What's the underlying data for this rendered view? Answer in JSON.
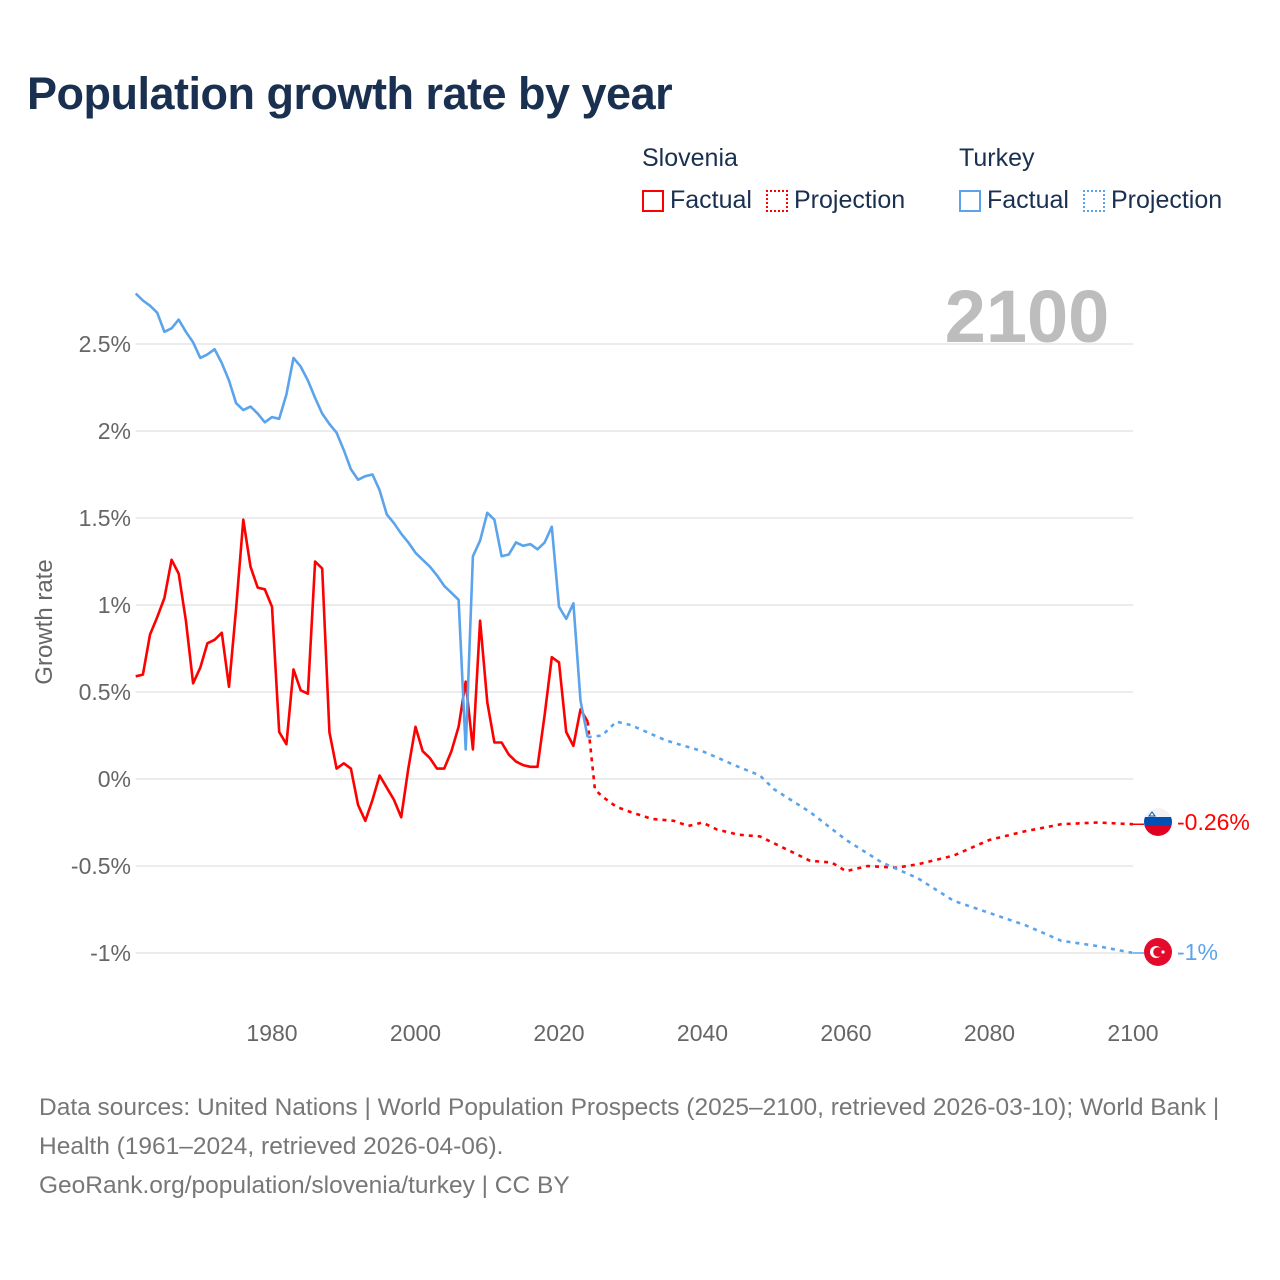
{
  "title": "Population growth rate by year",
  "legend": {
    "groups": [
      {
        "name": "Slovenia",
        "factual": "Factual",
        "projection": "Projection",
        "color": "#ff0000"
      },
      {
        "name": "Turkey",
        "factual": "Factual",
        "projection": "Projection",
        "color": "#5ba4ec"
      }
    ]
  },
  "year_label": "2100",
  "end_labels": {
    "slovenia": "-0.26%",
    "turkey": "-1%"
  },
  "footer": {
    "sources": "Data sources: United Nations | World Population Prospects (2025–2100, retrieved 2026-03-10); World Bank | Health (1961–2024, retrieved 2026-04-06).",
    "credit": "GeoRank.org/population/slovenia/turkey | CC BY"
  },
  "chart_data": {
    "type": "line",
    "title": "Population growth rate by year",
    "ylabel": "Growth rate",
    "xlabel": "",
    "xlim": [
      1961,
      2100
    ],
    "ylim": [
      -1.25,
      2.85
    ],
    "grid": true,
    "x_ticks": [
      "1980",
      "2000",
      "2020",
      "2040",
      "2060",
      "2080",
      "2100"
    ],
    "x_tick_values": [
      1980,
      2000,
      2020,
      2040,
      2060,
      2080,
      2100
    ],
    "y_ticks": [
      "-1%",
      "-0.5%",
      "0%",
      "0.5%",
      "1%",
      "1.5%",
      "2%",
      "2.5%"
    ],
    "y_tick_values": [
      -1,
      -0.5,
      0,
      0.5,
      1,
      1.5,
      2,
      2.5
    ],
    "legend_position": "top-right",
    "series": [
      {
        "name": "Slovenia",
        "kind": "Factual",
        "color": "#ff0000",
        "x": [
          1961,
          1962,
          1963,
          1964,
          1965,
          1966,
          1967,
          1968,
          1969,
          1970,
          1971,
          1972,
          1973,
          1974,
          1975,
          1976,
          1977,
          1978,
          1979,
          1980,
          1981,
          1982,
          1983,
          1984,
          1985,
          1986,
          1987,
          1988,
          1989,
          1990,
          1991,
          1992,
          1993,
          1994,
          1995,
          1996,
          1997,
          1998,
          1999,
          2000,
          2001,
          2002,
          2003,
          2004,
          2005,
          2006,
          2007,
          2008,
          2009,
          2010,
          2011,
          2012,
          2013,
          2014,
          2015,
          2016,
          2017,
          2018,
          2019,
          2020,
          2021,
          2022,
          2023,
          2024
        ],
        "y": [
          0.59,
          0.6,
          0.83,
          0.93,
          1.04,
          1.26,
          1.18,
          0.91,
          0.55,
          0.64,
          0.78,
          0.8,
          0.84,
          0.53,
          0.98,
          1.49,
          1.22,
          1.1,
          1.09,
          0.99,
          0.27,
          0.2,
          0.63,
          0.51,
          0.49,
          1.25,
          1.21,
          0.27,
          0.06,
          0.09,
          0.06,
          -0.15,
          -0.24,
          -0.12,
          0.02,
          -0.05,
          -0.12,
          -0.22,
          0.06,
          0.3,
          0.16,
          0.12,
          0.06,
          0.06,
          0.16,
          0.3,
          0.56,
          0.17,
          0.91,
          0.44,
          0.21,
          0.21,
          0.14,
          0.1,
          0.08,
          0.07,
          0.07,
          0.37,
          0.7,
          0.67,
          0.27,
          0.19,
          0.4,
          0.33
        ]
      },
      {
        "name": "Slovenia",
        "kind": "Projection",
        "color": "#ff0000",
        "x": [
          2024,
          2025,
          2026,
          2028,
          2030,
          2033,
          2036,
          2038,
          2040,
          2042,
          2045,
          2048,
          2050,
          2055,
          2058,
          2060,
          2063,
          2067,
          2070,
          2075,
          2080,
          2085,
          2090,
          2095,
          2100
        ],
        "y": [
          0.33,
          -0.06,
          -0.1,
          -0.16,
          -0.19,
          -0.23,
          -0.24,
          -0.27,
          -0.25,
          -0.29,
          -0.32,
          -0.33,
          -0.37,
          -0.47,
          -0.48,
          -0.53,
          -0.5,
          -0.51,
          -0.49,
          -0.44,
          -0.35,
          -0.3,
          -0.26,
          -0.25,
          -0.26
        ]
      },
      {
        "name": "Turkey",
        "kind": "Factual",
        "color": "#5ba4ec",
        "x": [
          1961,
          1962,
          1963,
          1964,
          1965,
          1966,
          1967,
          1968,
          1969,
          1970,
          1971,
          1972,
          1973,
          1974,
          1975,
          1976,
          1977,
          1978,
          1979,
          1980,
          1981,
          1982,
          1983,
          1984,
          1985,
          1986,
          1987,
          1988,
          1989,
          1990,
          1991,
          1992,
          1993,
          1994,
          1995,
          1996,
          1997,
          1998,
          1999,
          2000,
          2001,
          2002,
          2003,
          2004,
          2005,
          2006,
          2007,
          2008,
          2009,
          2010,
          2011,
          2012,
          2013,
          2014,
          2015,
          2016,
          2017,
          2018,
          2019,
          2020,
          2021,
          2022,
          2023,
          2024
        ],
        "y": [
          2.79,
          2.75,
          2.72,
          2.68,
          2.57,
          2.59,
          2.64,
          2.57,
          2.51,
          2.42,
          2.44,
          2.47,
          2.39,
          2.29,
          2.16,
          2.12,
          2.14,
          2.1,
          2.05,
          2.08,
          2.07,
          2.21,
          2.42,
          2.37,
          2.29,
          2.19,
          2.1,
          2.04,
          1.99,
          1.89,
          1.78,
          1.72,
          1.74,
          1.75,
          1.66,
          1.52,
          1.47,
          1.41,
          1.36,
          1.3,
          1.26,
          1.22,
          1.17,
          1.11,
          1.07,
          1.03,
          0.17,
          1.28,
          1.37,
          1.53,
          1.49,
          1.28,
          1.29,
          1.36,
          1.34,
          1.35,
          1.32,
          1.36,
          1.45,
          0.99,
          0.92,
          1.01,
          0.45,
          0.24
        ]
      },
      {
        "name": "Turkey",
        "kind": "Projection",
        "color": "#5ba4ec",
        "x": [
          2024,
          2026,
          2028,
          2030,
          2035,
          2040,
          2045,
          2048,
          2050,
          2055,
          2060,
          2065,
          2070,
          2075,
          2080,
          2085,
          2090,
          2095,
          2100
        ],
        "y": [
          0.24,
          0.25,
          0.33,
          0.31,
          0.22,
          0.16,
          0.07,
          0.02,
          -0.06,
          -0.19,
          -0.35,
          -0.48,
          -0.57,
          -0.7,
          -0.77,
          -0.84,
          -0.93,
          -0.96,
          -1.0
        ]
      }
    ]
  }
}
